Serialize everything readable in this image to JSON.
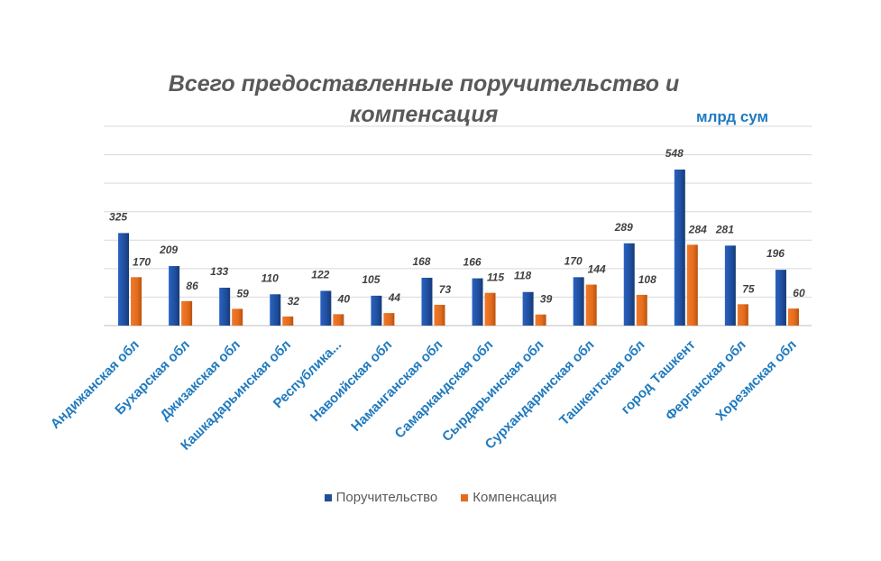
{
  "chart_data": {
    "type": "bar",
    "title": "Всего предоставленные поручительство и компенсация",
    "unit_label": "млрд сум",
    "categories": [
      "Андижанская обл",
      "Бухарская обл",
      "Джизакская обл",
      "Кашкадарьинская обл",
      "Республика...",
      "Навоийская обл",
      "Наманганская обл",
      "Самаркандская обл",
      "Сырдарьинская обл",
      "Сурхандаринская обл",
      "Ташкентская обл",
      "город Ташкент",
      "Ферганская обл",
      "Хорезмская обл"
    ],
    "series": [
      {
        "name": "Поручительство",
        "color": "#1f4e9c",
        "values": [
          325,
          209,
          133,
          110,
          122,
          105,
          168,
          166,
          118,
          170,
          289,
          548,
          281,
          196
        ]
      },
      {
        "name": "Компенсация",
        "color": "#e36c1d",
        "values": [
          170,
          86,
          59,
          32,
          40,
          44,
          73,
          115,
          39,
          144,
          108,
          284,
          75,
          60
        ]
      }
    ],
    "ylim": [
      0,
      700
    ],
    "y_axis_visible": false,
    "grid": true,
    "data_labels": true,
    "legend_position": "bottom",
    "category_label_color": "#1f7abf"
  }
}
